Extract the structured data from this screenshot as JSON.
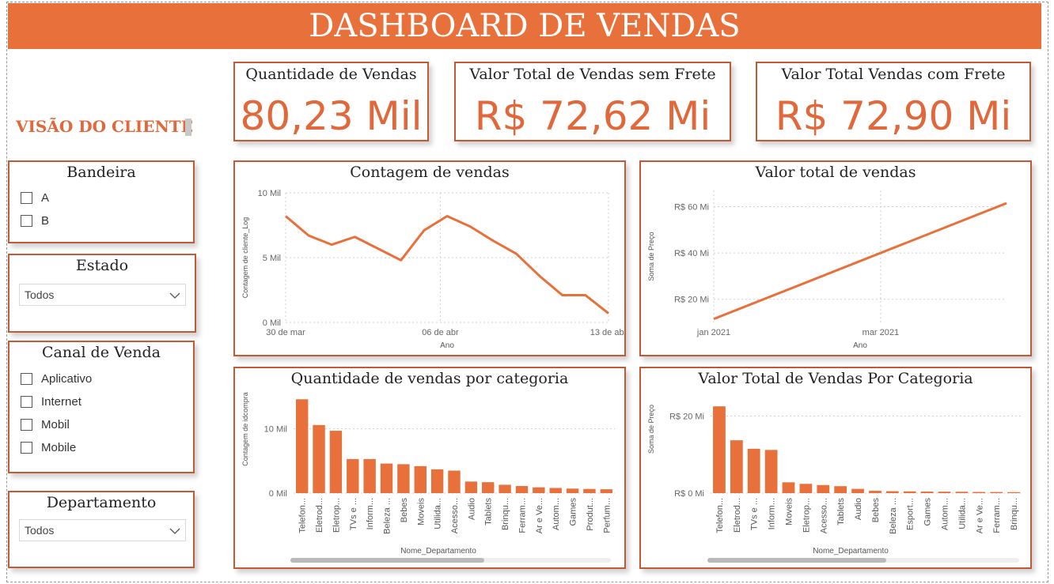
{
  "header": {
    "title": "DASHBOARD DE VENDAS"
  },
  "sidebar": {
    "section_title": "VISÃO DO CLIENTE",
    "bandeira": {
      "title": "Bandeira",
      "options": [
        "A",
        "B"
      ]
    },
    "estado": {
      "title": "Estado",
      "selected": "Todos"
    },
    "canal": {
      "title": "Canal de Venda",
      "options": [
        "Aplicativo",
        "Internet",
        "Mobil",
        "Mobile"
      ]
    },
    "departamento": {
      "title": "Departamento",
      "selected": "Todos"
    }
  },
  "kpis": [
    {
      "label": "Quantidade de Vendas",
      "value": "80,23 Mil"
    },
    {
      "label": "Valor Total de Vendas sem Frete",
      "value": "R$ 72,62 Mi"
    },
    {
      "label": "Valor Total Vendas com Frete",
      "value": "R$ 72,90 Mi"
    }
  ],
  "colors": {
    "accent": "#e8703a",
    "border": "#c35a33",
    "text": "#222222"
  },
  "icons": {
    "dropdown": "chevron-down-icon",
    "checkbox": "checkbox-icon"
  },
  "chart_data": [
    {
      "type": "line",
      "title": "Contagem de vendas",
      "xlabel": "Ano",
      "ylabel": "Contagem de cliente_Log",
      "ylim": [
        0,
        10000
      ],
      "yticks": [
        0,
        5000,
        10000
      ],
      "ytick_labels": [
        "0 Mil",
        "5 Mil",
        "10 Mil"
      ],
      "x_tick_labels": [
        "30 de mar",
        "06 de abr",
        "13 de abr"
      ],
      "x": [
        "30 de mar",
        "31 de mar",
        "01 de abr",
        "02 de abr",
        "03 de abr",
        "04 de abr",
        "05 de abr",
        "06 de abr",
        "07 de abr",
        "08 de abr",
        "09 de abr",
        "10 de abr",
        "11 de abr",
        "12 de abr",
        "13 de abr"
      ],
      "values": [
        8200,
        6700,
        6000,
        6600,
        5700,
        4800,
        7100,
        8200,
        7400,
        6300,
        5300,
        3600,
        2100,
        2100,
        700
      ],
      "grid": true
    },
    {
      "type": "line",
      "title": "Valor total de vendas",
      "xlabel": "Ano",
      "ylabel": "Soma de Preço",
      "ylim": [
        10000000,
        67000000
      ],
      "yticks": [
        20000000,
        40000000,
        60000000
      ],
      "ytick_labels": [
        "R$ 20 Mi",
        "R$ 40 Mi",
        "R$ 60 Mi"
      ],
      "x_tick_labels": [
        "jan 2021",
        "mar 2021"
      ],
      "x": [
        "jan 2021",
        "abr 2021"
      ],
      "values": [
        11500000,
        61500000
      ],
      "grid": true
    },
    {
      "type": "bar",
      "title": "Quantidade de vendas por categoria",
      "xlabel": "Nome_Departamento",
      "ylabel": "Contagem de idcompra",
      "ylim": [
        0,
        15000
      ],
      "yticks": [
        0,
        10000
      ],
      "ytick_labels": [
        "0 Mil",
        "10 Mil"
      ],
      "categories": [
        "Telefon...",
        "Eletrod...",
        "Eletrop...",
        "TVs e ...",
        "Inform...",
        "Beleza ...",
        "Bebes",
        "Moveis",
        "Utilida...",
        "Acesso...",
        "Audio",
        "Tablets",
        "Brinqu...",
        "Ferram...",
        "Ar e Ve...",
        "Autom...",
        "Games",
        "Produt...",
        "Perfum..."
      ],
      "values": [
        14600,
        10600,
        9700,
        5300,
        5300,
        4600,
        4500,
        4200,
        3700,
        3500,
        1800,
        1700,
        1300,
        1100,
        900,
        800,
        700,
        650,
        600
      ],
      "grid": true
    },
    {
      "type": "bar",
      "title": "Valor Total de Vendas Por Categoria",
      "xlabel": "Nome_Departamento",
      "ylabel": "Soma de Preço",
      "ylim": [
        0,
        25000000
      ],
      "yticks": [
        0,
        20000000
      ],
      "ytick_labels": [
        "R$ 0 Mi",
        "R$ 20 Mi"
      ],
      "categories": [
        "Telefon...",
        "Eletrod...",
        "TVs e ...",
        "Inform...",
        "Moveis",
        "Eletrop...",
        "Acesso...",
        "Tablets",
        "Audio",
        "Bebes",
        "Beleza ...",
        "Esport...",
        "Games",
        "Autom...",
        "Utilida...",
        "Ar e Ve...",
        "Ferram...",
        "Brinqu..."
      ],
      "values": [
        22500000,
        13700000,
        11500000,
        11200000,
        2800000,
        2400000,
        2100000,
        1800000,
        1100000,
        600000,
        500000,
        450000,
        400000,
        380000,
        350000,
        300000,
        280000,
        250000
      ],
      "grid": true
    }
  ]
}
